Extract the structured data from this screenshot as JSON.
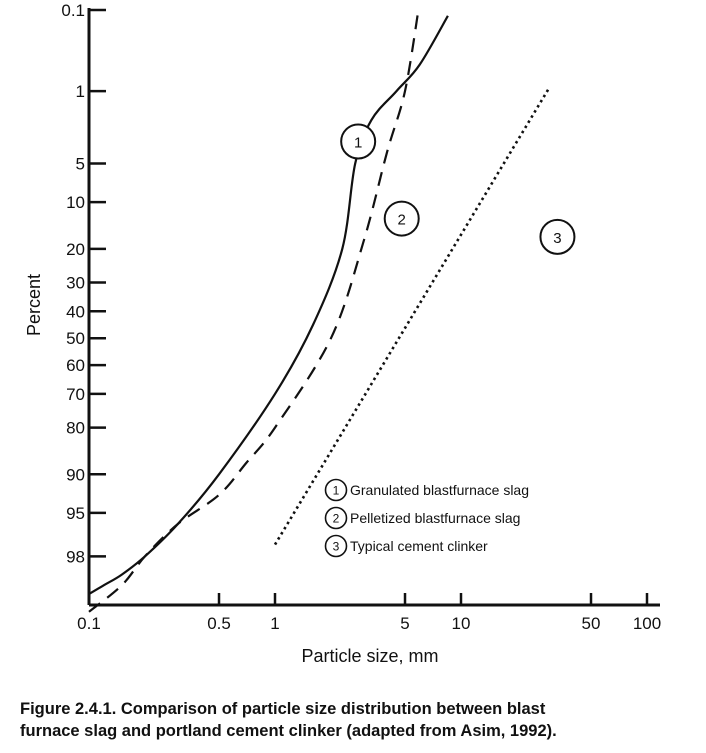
{
  "chart_data": {
    "type": "line",
    "xlabel": "Particle size, mm",
    "ylabel": "Percent",
    "x_scale": "log",
    "y_scale": "probability",
    "xlim": [
      0.1,
      100
    ],
    "ylim": [
      99.4,
      0.1
    ],
    "x_ticks": [
      0.1,
      0.5,
      1,
      5,
      10,
      50,
      100
    ],
    "x_tick_labels": [
      "0.1",
      "0.5",
      "1",
      "5",
      "10",
      "50",
      "100"
    ],
    "y_ticks": [
      0.1,
      1,
      5,
      10,
      20,
      30,
      40,
      50,
      60,
      70,
      80,
      90,
      95,
      98
    ],
    "y_tick_labels": [
      "0.1",
      "1",
      "5",
      "10",
      "20",
      "30",
      "40",
      "50",
      "60",
      "70",
      "80",
      "90",
      "95",
      "98"
    ],
    "series": [
      {
        "name": "Granulated blastfurnace slag",
        "marker_label": "1",
        "style": "solid",
        "x": [
          0.1,
          0.12,
          0.15,
          0.2,
          0.3,
          0.5,
          1,
          1.6,
          2.3,
          2.7,
          3.3,
          4.5,
          6,
          8.5
        ],
        "y": [
          99.2,
          99,
          98.7,
          98,
          96,
          90,
          70,
          45,
          20,
          5,
          2,
          1,
          0.5,
          0.12
        ]
      },
      {
        "name": "Pelletized blastfurnace slag",
        "marker_label": "2",
        "style": "dashed",
        "x": [
          0.1,
          0.15,
          0.2,
          0.3,
          0.5,
          0.7,
          1,
          2,
          3,
          4,
          5,
          5.9
        ],
        "y": [
          99.5,
          99,
          98,
          96,
          93,
          88,
          80,
          50,
          18,
          4,
          1,
          0.1
        ]
      },
      {
        "name": "Typical cement clinker",
        "marker_label": "3",
        "style": "dotted",
        "x": [
          1,
          30
        ],
        "y": [
          97.4,
          0.9
        ]
      }
    ],
    "annotations": [
      {
        "label": "1",
        "x": 2.8,
        "y": 3.2
      },
      {
        "label": "2",
        "x": 4.8,
        "y": 13
      },
      {
        "label": "3",
        "x": 33,
        "y": 17
      }
    ],
    "legend": {
      "position": "bottom-right"
    },
    "grid": false
  },
  "caption": "Figure 2.4.1.   Comparison of particle size distribution between blast\nfurnace slag and portland cement clinker (adapted from Asim, 1992)."
}
